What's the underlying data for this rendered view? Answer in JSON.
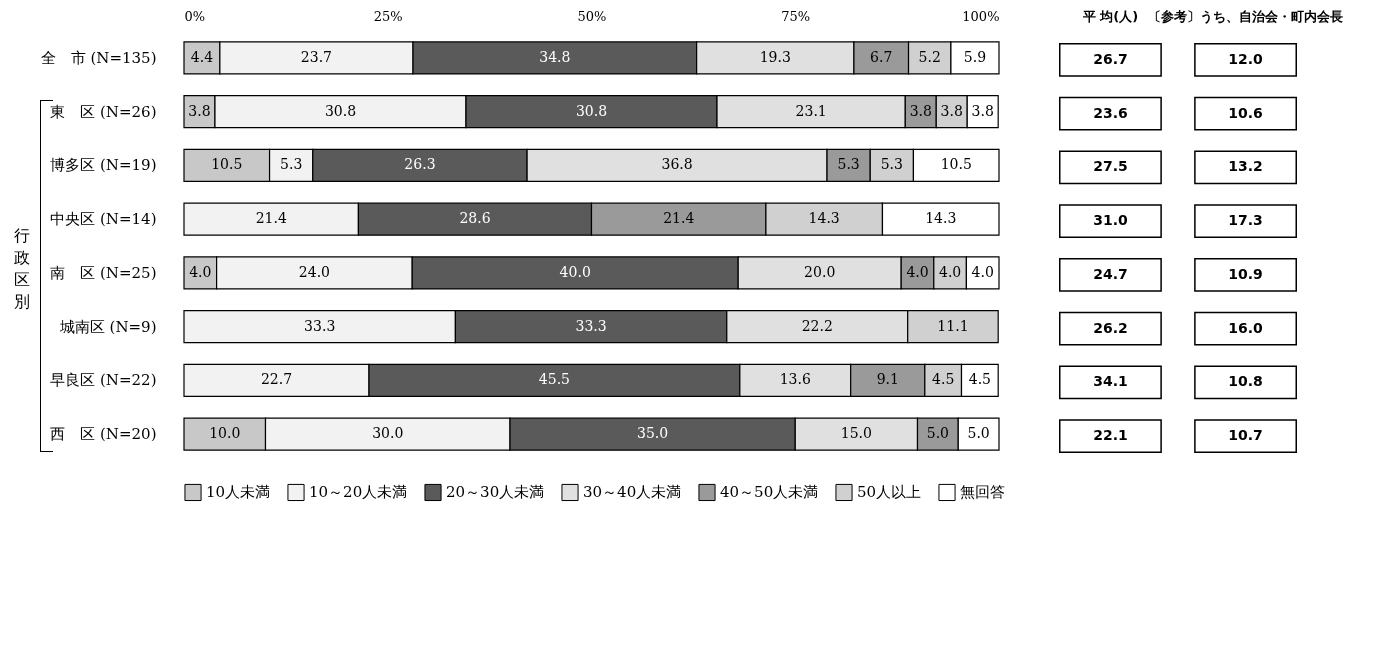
{
  "chart_data": [
    {
      "type": "bar",
      "orientation": "horizontal",
      "stacked": true,
      "legend": "bottom",
      "grid": false,
      "categories": [
        "全　市 (N=135)",
        "東　区 (N=26)",
        "博多区 (N=19)",
        "中央区 (N=14)",
        "南　区 (N=25)",
        "城南区 (N=9)",
        "早良区 (N=22)",
        "西　区 (N=20)"
      ],
      "xlim": [
        0,
        100
      ],
      "xticks": [
        {
          "value": 0,
          "label": "0%"
        },
        {
          "value": 25,
          "label": "25%"
        },
        {
          "value": 50,
          "label": "50%"
        },
        {
          "value": 75,
          "label": "75%"
        },
        {
          "value": 100,
          "label": "100%"
        }
      ],
      "annotations": [
        "行政区別"
      ],
      "series": [
        {
          "name": "10人未満",
          "color": "#c8c8c8",
          "values": [
            4.4,
            3.8,
            10.5,
            null,
            4.0,
            null,
            null,
            10.0
          ],
          "value_labels": [
            "4.4",
            "3.8",
            "10.5",
            null,
            "4.0",
            null,
            null,
            "10.0"
          ]
        },
        {
          "name": "10～20人未満",
          "color": "#f2f2f2",
          "values": [
            23.7,
            30.8,
            5.3,
            21.4,
            24.0,
            33.3,
            22.7,
            30.0
          ],
          "value_labels": [
            "23.7",
            "30.8",
            "5.3",
            "21.4",
            "24.0",
            "33.3",
            "22.7",
            "30.0"
          ]
        },
        {
          "name": "20～30人未満",
          "color": "#5a5a5a",
          "values": [
            34.8,
            30.8,
            26.3,
            28.6,
            40.0,
            33.3,
            45.5,
            35.0
          ],
          "value_labels": [
            "34.8",
            "30.8",
            "26.3",
            "28.6",
            "40.0",
            "33.3",
            "45.5",
            "35.0"
          ]
        },
        {
          "name": "30～40人未満",
          "color": "#e0e0e0",
          "values": [
            19.3,
            23.1,
            36.8,
            null,
            20.0,
            22.2,
            13.6,
            15.0
          ],
          "value_labels": [
            "19.3",
            "23.1",
            "36.8",
            null,
            "20.0",
            "22.2",
            "13.6",
            "15.0"
          ]
        },
        {
          "name": "40～50人未満",
          "color": "#9a9a9a",
          "values": [
            6.7,
            3.8,
            5.3,
            21.4,
            4.0,
            null,
            9.1,
            5.0
          ],
          "value_labels": [
            "6.7",
            "3.8",
            "5.3",
            "21.4",
            "4.0",
            null,
            "9.1",
            "5.0"
          ]
        },
        {
          "name": "50人以上",
          "color": "#d0d0d0",
          "values": [
            5.2,
            3.8,
            5.3,
            14.3,
            4.0,
            11.1,
            4.5,
            null
          ],
          "value_labels": [
            "5.2",
            "3.8",
            "5.3",
            "14.3",
            "4.0",
            "11.1",
            "4.5",
            null
          ]
        },
        {
          "name": "無回答",
          "color": "#ffffff",
          "values": [
            5.9,
            3.8,
            10.5,
            14.3,
            4.0,
            null,
            4.5,
            5.0
          ],
          "value_labels": [
            "5.9",
            "3.8",
            "10.5",
            "14.3",
            "4.0",
            null,
            "4.5",
            "5.0"
          ]
        }
      ]
    },
    {
      "type": "other",
      "categories": [
        "平 均(人)",
        "〔参考〕うち、自治会・町内会長"
      ],
      "annotations": [
        "26.7",
        "12.0",
        "23.6",
        "10.6",
        "27.5",
        "13.2",
        "31.0",
        "17.3",
        "24.7",
        "10.9",
        "26.2",
        "16.0",
        "34.1",
        "10.8",
        "22.1",
        "10.7"
      ]
    }
  ]
}
